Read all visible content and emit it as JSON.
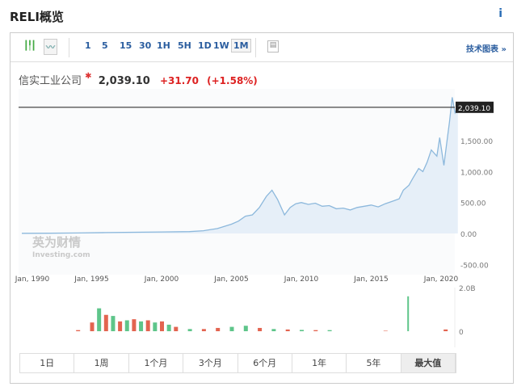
{
  "header": {
    "title": "RELI概览",
    "info_icon": "i"
  },
  "toolbar": {
    "chart_types": [
      "candlestick-icon",
      "line-chart-icon"
    ],
    "intervals": [
      "1",
      "5",
      "15",
      "30",
      "1H",
      "5H",
      "1D",
      "1W",
      "1M"
    ],
    "active_interval": "1M",
    "calendar_icon": "calendar-icon",
    "tech_chart": "技术图表 »"
  },
  "quote": {
    "name": "信实工业公司",
    "price": "2,039.10",
    "change": "+31.70",
    "change_pct": "(+1.58%)"
  },
  "logo": {
    "cn": "英为财情",
    "en": "Investing.com"
  },
  "ranges": [
    "1日",
    "1周",
    "1个月",
    "3个月",
    "6个月",
    "1年",
    "5年",
    "最大值"
  ],
  "active_range": "最大值",
  "colors": {
    "line": "#8cb8dc",
    "fill": "#e6eff8",
    "up": "#4cbf7d",
    "down": "#e0533d"
  },
  "chart_data": [
    {
      "type": "area",
      "ylim": [
        -500,
        2200
      ],
      "y_ticks": [
        "1,500.00",
        "1,000.00",
        "500.00",
        "0.00",
        "-500.00"
      ],
      "y_tick_values": [
        1500,
        1000,
        500,
        0,
        -500
      ],
      "current_label": "2,039.10",
      "current_value": 2039.1,
      "x_ticks": [
        "Jan, 1990",
        "Jan, 1995",
        "Jan, 2000",
        "Jan, 2005",
        "Jan, 2010",
        "Jan, 2015",
        "Jan, 2020"
      ],
      "x_tick_values": [
        1990,
        1995,
        2000,
        2005,
        2010,
        2015,
        2020
      ],
      "x": [
        1990,
        1992,
        1994,
        1996,
        1998,
        2000,
        2002,
        2003,
        2004,
        2005,
        2005.5,
        2006,
        2006.5,
        2007,
        2007.5,
        2007.9,
        2008.3,
        2008.8,
        2009.2,
        2009.6,
        2010,
        2010.5,
        2011,
        2011.5,
        2012,
        2012.5,
        2013,
        2013.5,
        2014,
        2014.5,
        2015,
        2015.5,
        2016,
        2016.5,
        2017,
        2017.3,
        2017.7,
        2018,
        2018.4,
        2018.7,
        2019,
        2019.3,
        2019.7,
        2019.9,
        2020.2,
        2020.4,
        2020.6,
        2020.8,
        2021,
        2021.2
      ],
      "y": [
        2,
        4,
        8,
        15,
        20,
        25,
        30,
        45,
        80,
        150,
        200,
        280,
        300,
        420,
        600,
        700,
        550,
        300,
        420,
        480,
        500,
        470,
        490,
        440,
        450,
        400,
        410,
        380,
        420,
        440,
        460,
        430,
        480,
        520,
        560,
        700,
        780,
        900,
        1050,
        1000,
        1150,
        1350,
        1250,
        1550,
        1100,
        1450,
        1800,
        2200,
        1950,
        2039
      ]
    },
    {
      "type": "bar",
      "ylabel_top": "2.0B",
      "ylabel_zero": "0",
      "ylim": [
        0,
        2
      ],
      "x": [
        1994,
        1995,
        1995.5,
        1996,
        1996.5,
        1997,
        1997.5,
        1998,
        1998.5,
        1999,
        1999.5,
        2000,
        2000.5,
        2001,
        2002,
        2003,
        2004,
        2005,
        2006,
        2007,
        2008,
        2009,
        2010,
        2011,
        2012,
        2016,
        2017.7,
        2020.3
      ],
      "values": [
        0.05,
        0.4,
        1.05,
        0.75,
        0.7,
        0.45,
        0.5,
        0.55,
        0.45,
        0.5,
        0.4,
        0.45,
        0.3,
        0.2,
        0.1,
        0.1,
        0.15,
        0.2,
        0.25,
        0.15,
        0.1,
        0.08,
        0.06,
        0.05,
        0.05,
        0.02,
        1.6,
        0.08
      ],
      "direction": [
        "down",
        "down",
        "up",
        "down",
        "up",
        "down",
        "up",
        "down",
        "up",
        "down",
        "up",
        "down",
        "up",
        "down",
        "up",
        "down",
        "down",
        "up",
        "up",
        "down",
        "up",
        "down",
        "up",
        "down",
        "up",
        "down",
        "up",
        "down"
      ]
    }
  ]
}
